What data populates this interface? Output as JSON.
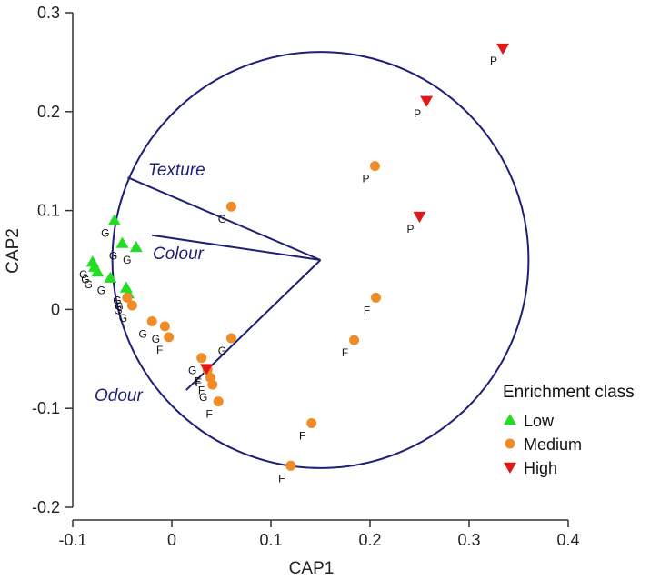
{
  "chart_data": {
    "type": "scatter",
    "title": "",
    "xlabel": "CAP1",
    "ylabel": "CAP2",
    "xlim": [
      -0.1,
      0.4
    ],
    "ylim": [
      -0.2,
      0.3
    ],
    "x_ticks": [
      -0.1,
      0,
      0.1,
      0.2,
      0.3,
      0.4
    ],
    "x_tick_labels": [
      "-0.1",
      "0",
      "0.1",
      "0.2",
      "0.3",
      "0.4"
    ],
    "y_ticks": [
      -0.2,
      -0.1,
      0,
      0.1,
      0.2,
      0.3
    ],
    "y_tick_labels": [
      "-0.2",
      "-0.1",
      "0",
      "0.1",
      "0.2",
      "0.3"
    ],
    "grid": false,
    "legend": {
      "title": "Enrichment class",
      "placement": "bottom-right",
      "entries": [
        {
          "name": "Low",
          "marker": "triangle-up",
          "color": "#22dd22"
        },
        {
          "name": "Medium",
          "marker": "circle",
          "color": "#f08c28"
        },
        {
          "name": "High",
          "marker": "triangle-down",
          "color": "#e01818"
        }
      ]
    },
    "circle": {
      "center": [
        0.15,
        0.05
      ],
      "radius_x": 0.21,
      "color": "#1f1f78"
    },
    "vectors": [
      {
        "name": "Texture",
        "from": [
          0.15,
          0.05
        ],
        "to": [
          -0.0445,
          0.1335
        ]
      },
      {
        "name": "Colour",
        "from": [
          0.15,
          0.05
        ],
        "to": [
          -0.02,
          0.075
        ]
      },
      {
        "name": "Odour",
        "from": [
          0.15,
          0.05
        ],
        "to": [
          0.0145,
          -0.0815
        ]
      }
    ],
    "series": [
      {
        "name": "Low",
        "points": [
          {
            "x": -0.058,
            "y": 0.09,
            "label": "G"
          },
          {
            "x": -0.05,
            "y": 0.067,
            "label": "G"
          },
          {
            "x": -0.036,
            "y": 0.063,
            "label": "G"
          },
          {
            "x": -0.08,
            "y": 0.048,
            "label": "G"
          },
          {
            "x": -0.078,
            "y": 0.043,
            "label": "G"
          },
          {
            "x": -0.075,
            "y": 0.038,
            "label": "G"
          },
          {
            "x": -0.062,
            "y": 0.032,
            "label": "G"
          },
          {
            "x": -0.046,
            "y": 0.022,
            "label": "G"
          },
          {
            "x": -0.044,
            "y": 0.016,
            "label": "G"
          }
        ]
      },
      {
        "name": "Medium",
        "points": [
          {
            "x": 0.06,
            "y": 0.104,
            "label": "G"
          },
          {
            "x": 0.205,
            "y": 0.145,
            "label": "P"
          },
          {
            "x": 0.206,
            "y": 0.012,
            "label": "F"
          },
          {
            "x": 0.184,
            "y": -0.031,
            "label": "F"
          },
          {
            "x": 0.141,
            "y": -0.115,
            "label": "F"
          },
          {
            "x": 0.12,
            "y": -0.158,
            "label": "F"
          },
          {
            "x": 0.06,
            "y": -0.029,
            "label": "G"
          },
          {
            "x": -0.045,
            "y": 0.012,
            "label": "G"
          },
          {
            "x": -0.04,
            "y": 0.004,
            "label": "G"
          },
          {
            "x": -0.02,
            "y": -0.012,
            "label": "G"
          },
          {
            "x": -0.007,
            "y": -0.017,
            "label": "G"
          },
          {
            "x": -0.003,
            "y": -0.028,
            "label": "F"
          },
          {
            "x": 0.03,
            "y": -0.049,
            "label": "G"
          },
          {
            "x": 0.036,
            "y": -0.061,
            "label": "F"
          },
          {
            "x": 0.039,
            "y": -0.069,
            "label": "F"
          },
          {
            "x": 0.041,
            "y": -0.076,
            "label": "G"
          },
          {
            "x": 0.047,
            "y": -0.093,
            "label": "F"
          }
        ]
      },
      {
        "name": "High",
        "points": [
          {
            "x": 0.334,
            "y": 0.264,
            "label": "P"
          },
          {
            "x": 0.257,
            "y": 0.211,
            "label": "P"
          },
          {
            "x": 0.25,
            "y": 0.094,
            "label": "P"
          },
          {
            "x": 0.035,
            "y": -0.06,
            "label": "F"
          }
        ]
      }
    ]
  }
}
